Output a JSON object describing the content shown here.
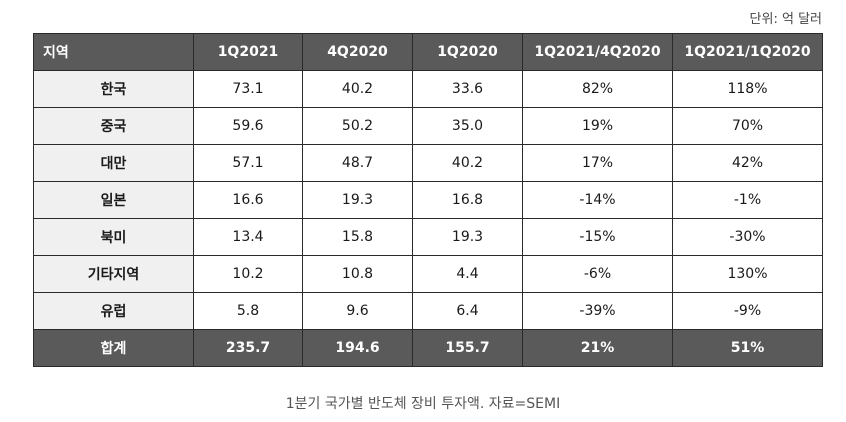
{
  "unit_label": "단위: 억 달러",
  "table": {
    "headers": [
      "지역",
      "1Q2021",
      "4Q2020",
      "1Q2020",
      "1Q2021/4Q2020",
      "1Q2021/1Q2020"
    ],
    "rows": [
      [
        "한국",
        "73.1",
        "40.2",
        "33.6",
        "82%",
        "118%"
      ],
      [
        "중국",
        "59.6",
        "50.2",
        "35.0",
        "19%",
        "70%"
      ],
      [
        "대만",
        "57.1",
        "48.7",
        "40.2",
        "17%",
        "42%"
      ],
      [
        "일본",
        "16.6",
        "19.3",
        "16.8",
        "-14%",
        "-1%"
      ],
      [
        "북미",
        "13.4",
        "15.8",
        "19.3",
        "-15%",
        "-30%"
      ],
      [
        "기타지역",
        "10.2",
        "10.8",
        "4.4",
        "-6%",
        "130%"
      ],
      [
        "유럽",
        "5.8",
        "9.6",
        "6.4",
        "-39%",
        "-9%"
      ]
    ],
    "total": [
      "합계",
      "235.7",
      "194.6",
      "155.7",
      "21%",
      "51%"
    ]
  },
  "caption": "1분기 국가별 반도체 장비 투자액. 자료=SEMI"
}
